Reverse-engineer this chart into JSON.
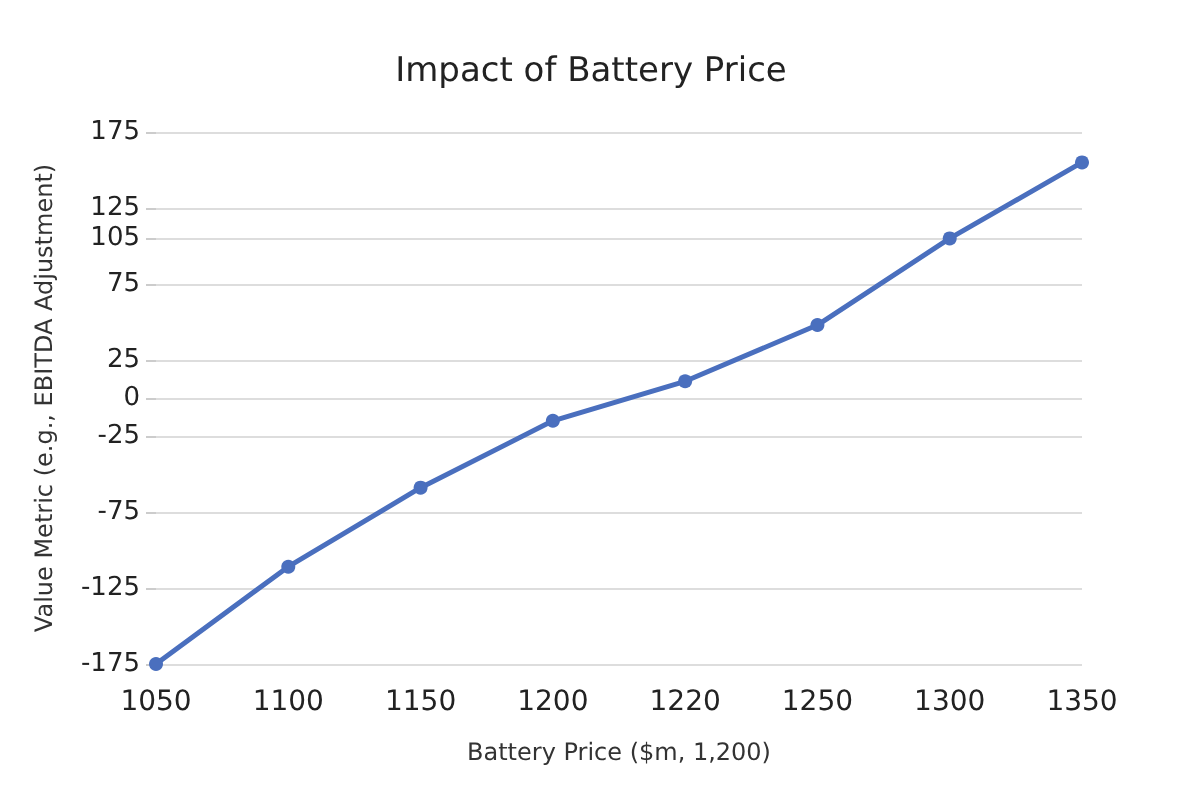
{
  "chart_data": {
    "type": "line",
    "title": "Impact of Battery Price",
    "xlabel": "Battery Price ($m, 1,200)",
    "ylabel": "Value Metric (e.g., EBITDA Adjustment)",
    "categories": [
      "1050",
      "1100",
      "1150",
      "1200",
      "1220",
      "1250",
      "1300",
      "1350"
    ],
    "series": [
      {
        "color": "#4a6fbe",
        "values": [
          -175,
          -111,
          -59,
          -15,
          11,
          48,
          105,
          155
        ]
      }
    ],
    "ylim": [
      -175,
      175
    ],
    "yticks": [
      -175,
      -125,
      -75,
      -25,
      0,
      25,
      75,
      105,
      125,
      175
    ],
    "grid": "y",
    "marker": "circle",
    "line_style": "solid"
  }
}
